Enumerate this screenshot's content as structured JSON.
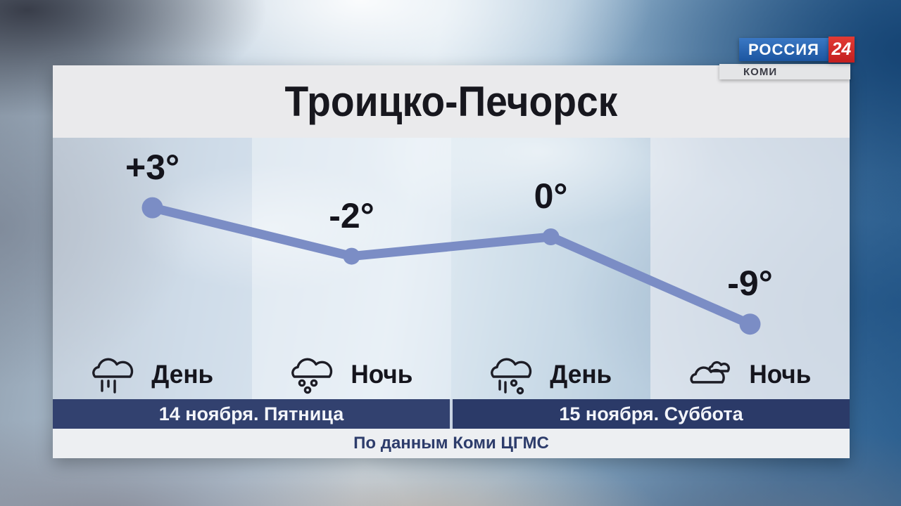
{
  "channel": {
    "name": "РОССИЯ",
    "number": "24",
    "region": "КОМИ"
  },
  "location": {
    "title": "Троицко-Печорск"
  },
  "chart_data": {
    "type": "line",
    "title": "Троицко-Печорск",
    "categories": [
      "День (14 ноября)",
      "Ночь (14 ноября)",
      "День (15 ноября)",
      "Ночь (15 ноября)"
    ],
    "values": [
      3,
      -2,
      0,
      -9
    ],
    "point_labels": [
      "+3°",
      "-2°",
      "0°",
      "-9°"
    ],
    "ylim": [
      -12,
      6
    ],
    "line_color": "#7b8dc5",
    "grid": false,
    "legend": false
  },
  "columns": [
    {
      "temp": "+3°",
      "period": "День",
      "icon": "rain-icon"
    },
    {
      "temp": "-2°",
      "period": "Ночь",
      "icon": "snow-icon"
    },
    {
      "temp": "0°",
      "period": "День",
      "icon": "rain-snow-icon"
    },
    {
      "temp": "-9°",
      "period": "Ночь",
      "icon": "clouds-icon"
    }
  ],
  "dates": [
    {
      "label": "14 ноября. Пятница"
    },
    {
      "label": "15 ноября. Суббота"
    }
  ],
  "footer": {
    "source": "По данным Коми ЦГМС"
  }
}
